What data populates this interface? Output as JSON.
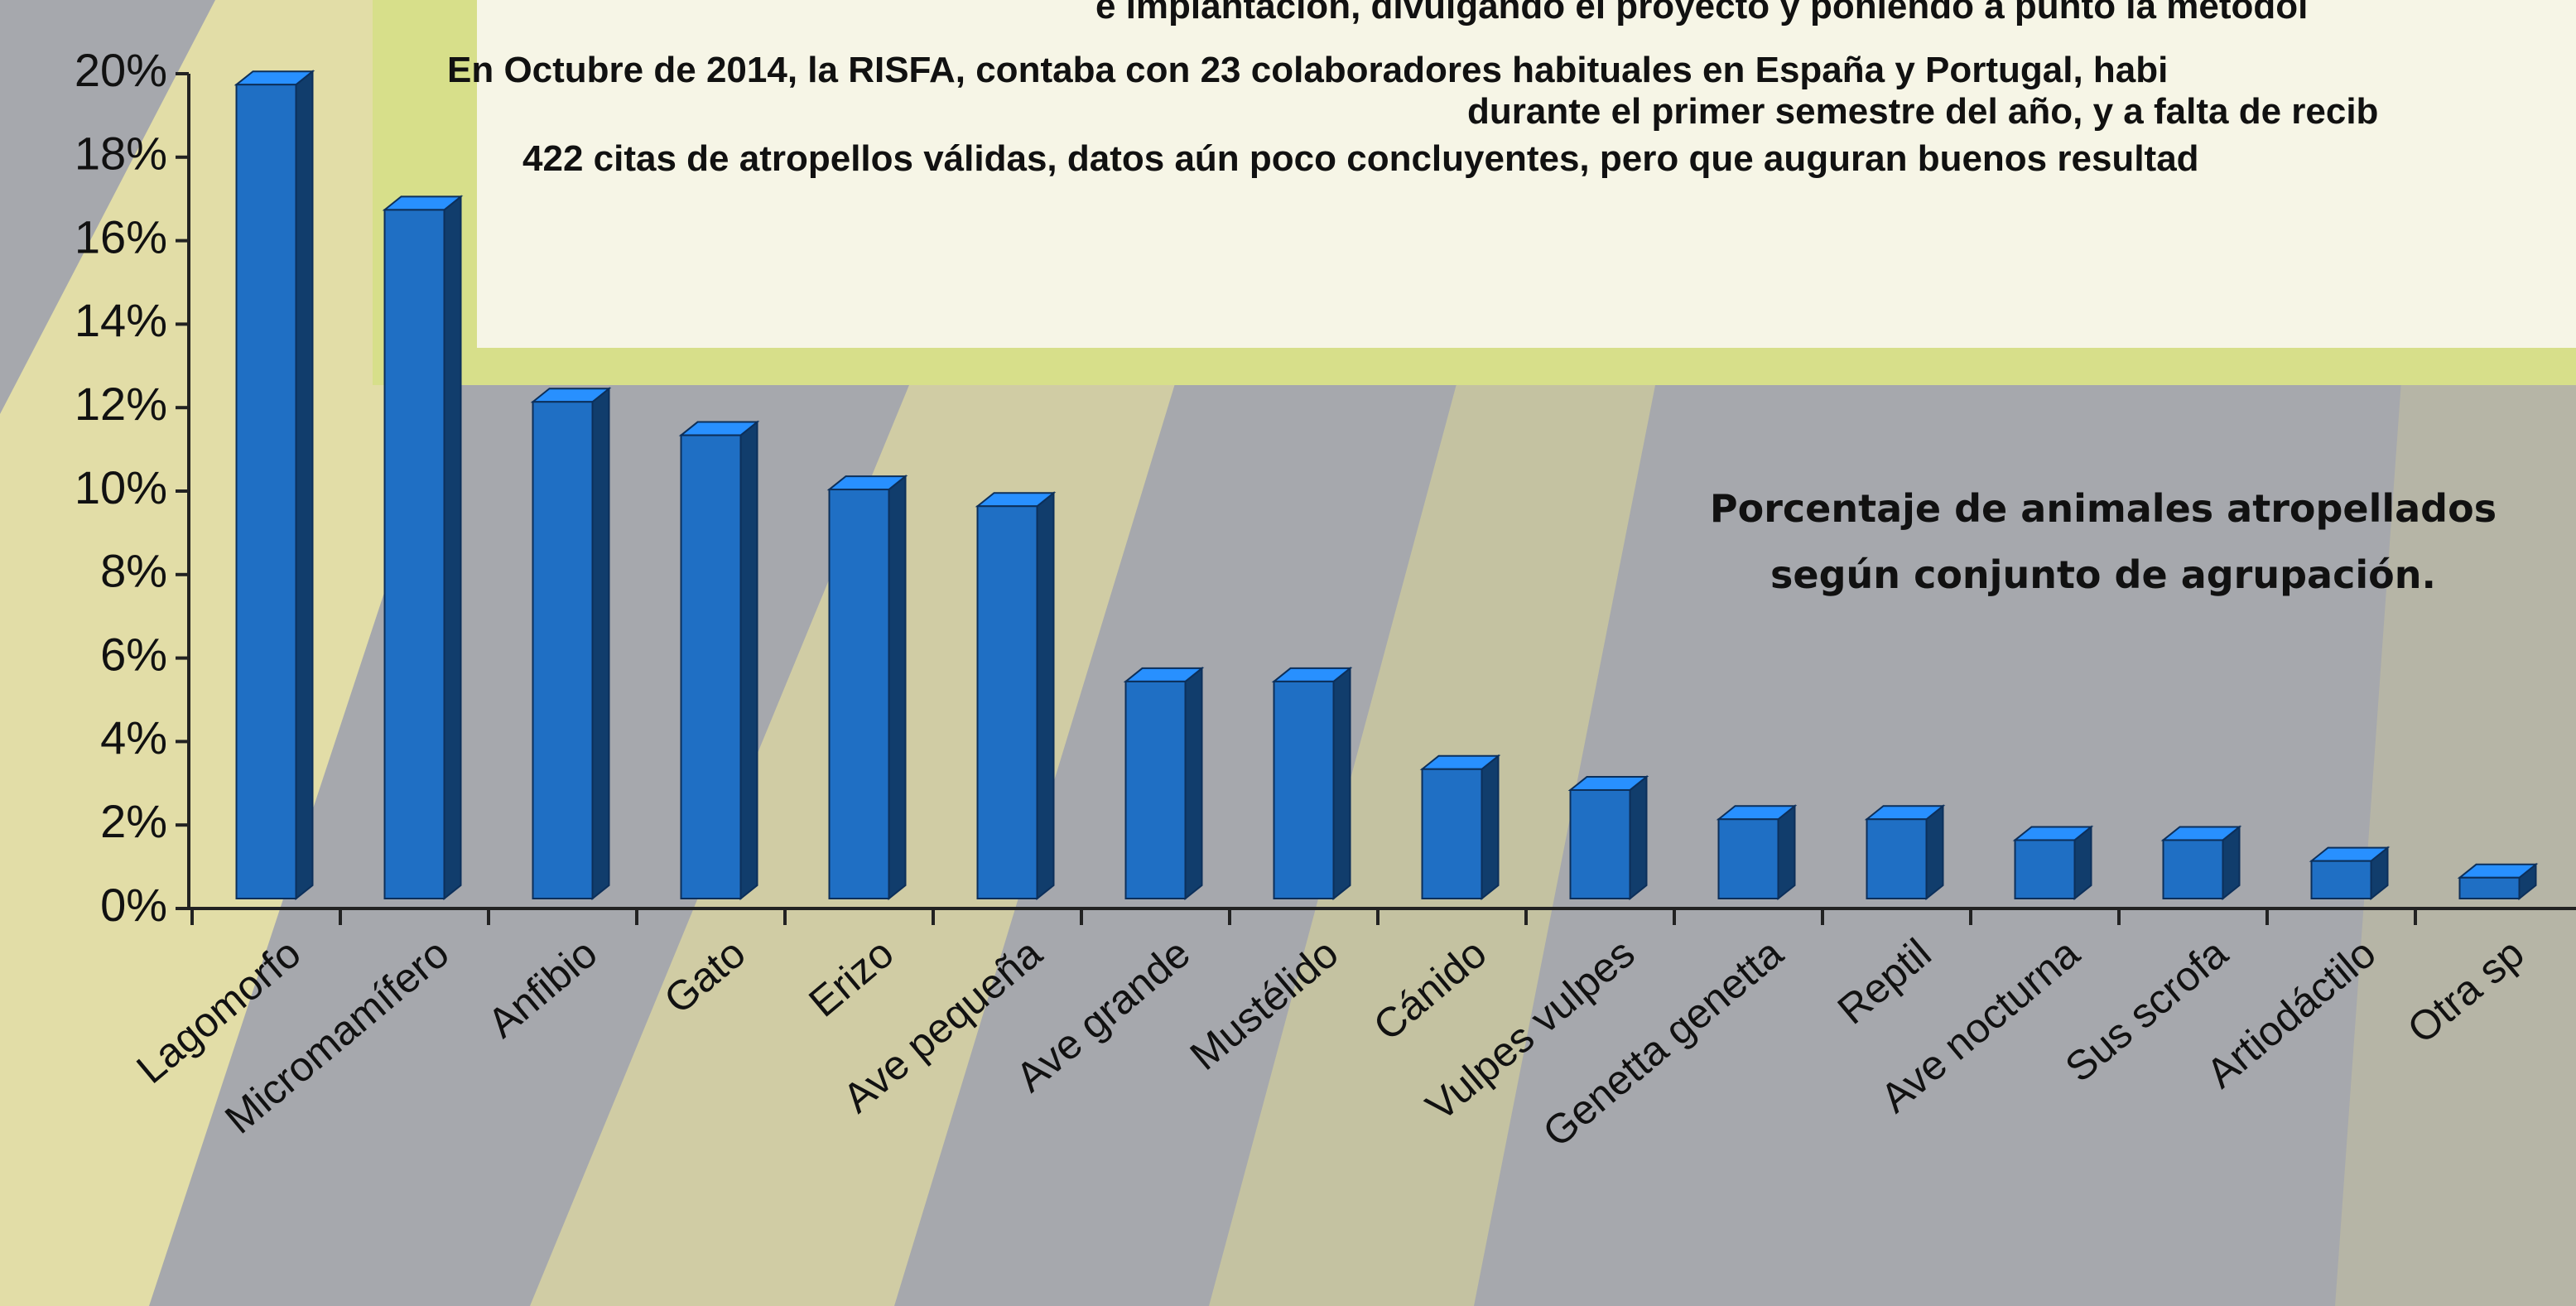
{
  "chart_data": {
    "type": "bar3d",
    "notes": [
      "e implantación, divulgando el proyecto y poniendo a punto la metodol",
      "En Octubre de 2014, la RISFA, contaba con 23 colaboradores habituales  en España y Portugal, habi",
      "durante el primer semestre del año, y a falta de recib",
      "422 citas de atropellos válidas, datos aún poco concluyentes, pero que auguran buenos resultad"
    ],
    "title": [
      "Porcentaje de animales atropellados",
      "según conjunto de agrupación."
    ],
    "categories": [
      "Lagomorfo",
      "Micromamífero",
      "Anfibio",
      "Gato",
      "Erizo",
      "Ave pequeña",
      "Ave grande",
      "Mustélido",
      "Cánido",
      "Vulpes vulpes",
      "Genetta genetta",
      "Reptil",
      "Ave nocturna",
      "Sus scrofa",
      "Artiodáctilo",
      "Otra sp"
    ],
    "values": [
      19.5,
      16.5,
      11.9,
      11.1,
      9.8,
      9.4,
      5.2,
      5.2,
      3.1,
      2.6,
      1.9,
      1.9,
      1.4,
      1.4,
      0.9,
      0.5
    ],
    "color": "#1f6fc4",
    "ylim": [
      0,
      20
    ],
    "yticks": [
      {
        "value": 0,
        "label": "0%"
      },
      {
        "value": 2,
        "label": "2%"
      },
      {
        "value": 4,
        "label": "4%"
      },
      {
        "value": 6,
        "label": "6%"
      },
      {
        "value": 8,
        "label": "8%"
      },
      {
        "value": 10,
        "label": "10%"
      },
      {
        "value": 12,
        "label": "12%"
      },
      {
        "value": 14,
        "label": "14%"
      },
      {
        "value": 16,
        "label": "16%"
      },
      {
        "value": 18,
        "label": "18%"
      },
      {
        "value": 20,
        "label": "20%"
      }
    ]
  }
}
